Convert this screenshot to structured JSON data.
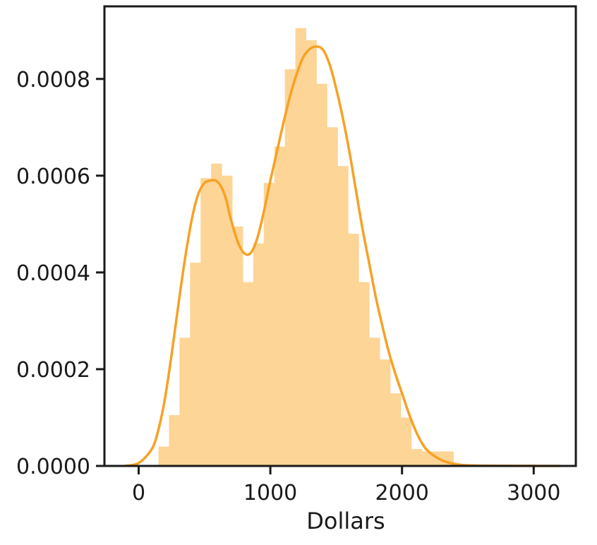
{
  "chart_data": {
    "type": "bar",
    "title": "",
    "xlabel": "Dollars",
    "ylabel": "",
    "xlim": [
      -260,
      3320
    ],
    "ylim": [
      0,
      0.00095
    ],
    "grid": false,
    "legend": "none",
    "x_ticks": [
      0,
      1000,
      2000,
      3000
    ],
    "x_tick_labels": [
      "0",
      "1000",
      "2000",
      "3000"
    ],
    "y_ticks": [
      0,
      0.0002,
      0.0004,
      0.0006,
      0.0008
    ],
    "y_tick_labels": [
      "0.0000",
      "0.0002",
      "0.0004",
      "0.0006",
      "0.0008"
    ],
    "histogram": {
      "bin_edges": [
        150,
        230,
        310,
        390,
        470,
        550,
        630,
        710,
        790,
        870,
        950,
        1030,
        1110,
        1190,
        1270,
        1350,
        1430,
        1510,
        1590,
        1670,
        1750,
        1830,
        1910,
        1990,
        2070,
        2150,
        2230,
        2310,
        2390
      ],
      "values": [
        4e-05,
        0.000105,
        0.000265,
        0.00042,
        0.000595,
        0.000625,
        0.0006,
        0.000495,
        0.00038,
        0.00046,
        0.000585,
        0.00066,
        0.00082,
        0.000905,
        0.00088,
        0.00079,
        0.0007,
        0.00062,
        0.00048,
        0.00038,
        0.000265,
        0.00022,
        0.00015,
        0.0001,
        3.5e-05,
        3e-05,
        3e-05,
        3e-05
      ],
      "color": "#fdd597"
    },
    "kde": {
      "x": [
        -100,
        0,
        100,
        150,
        200,
        250,
        300,
        350,
        400,
        450,
        500,
        550,
        585,
        620,
        660,
        700,
        750,
        800,
        850,
        900,
        950,
        1000,
        1050,
        1100,
        1150,
        1200,
        1250,
        1300,
        1350,
        1400,
        1450,
        1500,
        1550,
        1600,
        1650,
        1700,
        1750,
        1800,
        1850,
        1900,
        1950,
        2000,
        2050,
        2100,
        2150,
        2200,
        2300,
        2400,
        2500,
        2700,
        3000,
        3200
      ],
      "y": [
        3e-07,
        6e-06,
        3.5e-05,
        7.5e-05,
        0.00014,
        0.00023,
        0.00033,
        0.000425,
        0.000505,
        0.00056,
        0.000585,
        0.00059,
        0.00059,
        0.00058,
        0.000555,
        0.00051,
        0.000465,
        0.00044,
        0.00044,
        0.00047,
        0.000525,
        0.00059,
        0.00065,
        0.00071,
        0.000765,
        0.00081,
        0.000845,
        0.000862,
        0.000867,
        0.00086,
        0.00083,
        0.00078,
        0.00072,
        0.00065,
        0.00057,
        0.00049,
        0.00042,
        0.00035,
        0.00029,
        0.000235,
        0.00019,
        0.00015,
        0.00011,
        7.5e-05,
        4.8e-05,
        3e-05,
        1.2e-05,
        4e-06,
        1.2e-06,
        3e-07,
        1e-07,
        0.0
      ],
      "color": "#f7a124"
    }
  }
}
